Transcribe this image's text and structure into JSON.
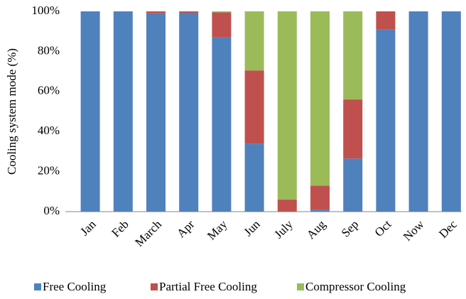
{
  "chart_data": {
    "type": "stacked_bar",
    "y_label": "Cooling system mode (%)",
    "categories": [
      "Jan",
      "Feb",
      "March",
      "Apr",
      "May",
      "Jun",
      "July",
      "Aug",
      "Sep",
      "Oct",
      "Now",
      "Dec"
    ],
    "series": [
      {
        "name": "Free Cooling",
        "color": "#4f81bd",
        "values": [
          100,
          100,
          99,
          99.3,
          87,
          34,
          0,
          1,
          26.5,
          91,
          100,
          100
        ]
      },
      {
        "name": "Partial Free Cooling",
        "color": "#c0504d",
        "values": [
          0,
          0,
          1,
          0.7,
          12.5,
          36.5,
          6,
          12,
          29.5,
          9,
          0,
          0
        ]
      },
      {
        "name": "Compressor Cooling",
        "color": "#9bbb59",
        "values": [
          0,
          0,
          0,
          0,
          0.5,
          29.5,
          94,
          87,
          44,
          0,
          0,
          0
        ]
      }
    ],
    "ylim": [
      0,
      100
    ],
    "yticks": [
      {
        "value": 0,
        "label": "0%"
      },
      {
        "value": 20,
        "label": "20%"
      },
      {
        "value": 40,
        "label": "40%"
      },
      {
        "value": 60,
        "label": "60%"
      },
      {
        "value": 80,
        "label": "80%"
      },
      {
        "value": 100,
        "label": "100%"
      }
    ],
    "legend": "bottom"
  }
}
